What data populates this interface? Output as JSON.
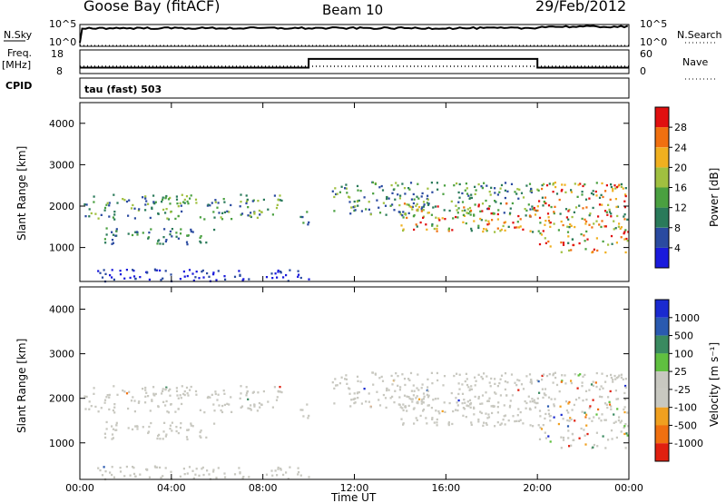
{
  "header": {
    "station": "Goose Bay (fitACF)",
    "beam": "Beam 10",
    "date": "29/Feb/2012"
  },
  "top_panels": {
    "nsky_label": "N.Sky",
    "nsky_ticks": [
      "10^5",
      "10^0"
    ],
    "nsearch_label": "N.Search",
    "nsearch_ticks": [
      "10^5",
      "10^0"
    ],
    "freq_label": "Freq.",
    "freq_unit": "[MHz]",
    "freq_ticks": [
      "18",
      "8"
    ],
    "nave_label": "Nave",
    "nave_ticks": [
      "60",
      "0"
    ],
    "cpid_label": "CPID",
    "cpid_value": "tau (fast) 503"
  },
  "colorbars": {
    "power": {
      "label": "Power [dB]",
      "ticks": [
        "28",
        "24",
        "20",
        "16",
        "12",
        "8",
        "4"
      ],
      "colors": [
        "#1a1adc",
        "#2a4aa0",
        "#2a7a5a",
        "#4aa040",
        "#a0c040",
        "#f0b020",
        "#f07010",
        "#e01010"
      ]
    },
    "velocity": {
      "label": "Velocity [m s⁻¹]",
      "ticks": [
        "1000",
        "500",
        "100",
        "25",
        "-25",
        "-100",
        "-500",
        "-1000"
      ],
      "colors": [
        "#1a2ad0",
        "#2a5ab0",
        "#3a8a60",
        "#60c040",
        "#c8c8c0",
        "#c8c8c0",
        "#f0a020",
        "#f07010",
        "#e02010"
      ]
    }
  },
  "chart_data": [
    {
      "type": "heatmap",
      "title": "Power",
      "ylabel": "Slant Range [km]",
      "yticks": [
        "4000",
        "3000",
        "2000",
        "1000"
      ],
      "ylim": [
        180,
        4500
      ],
      "xlim": [
        0,
        24
      ],
      "features": [
        {
          "t0": 0.1,
          "t1": 8.8,
          "r": [
            1700,
            2300
          ],
          "level": "strong"
        },
        {
          "t0": 1.0,
          "t1": 6.0,
          "r": [
            1100,
            1500
          ],
          "level": "medium"
        },
        {
          "t0": 9.5,
          "t1": 10.0,
          "r": [
            1500,
            1900
          ],
          "level": "medium"
        },
        {
          "t0": 11.0,
          "t1": 20.0,
          "r": [
            1800,
            2600
          ],
          "level": "strong"
        },
        {
          "t0": 14.0,
          "t1": 20.0,
          "r": [
            1400,
            2100
          ],
          "level": "high"
        },
        {
          "t0": 20.0,
          "t1": 24.0,
          "r": [
            900,
            2600
          ],
          "level": "high"
        },
        {
          "t0": 0.5,
          "t1": 10.0,
          "r": [
            200,
            500
          ],
          "level": "weak"
        }
      ]
    },
    {
      "type": "heatmap",
      "title": "Velocity",
      "ylabel": "Slant Range [km]",
      "xlabel": "Time UT",
      "yticks": [
        "4000",
        "3000",
        "2000",
        "1000"
      ],
      "xticks": [
        "00:00",
        "04:00",
        "08:00",
        "12:00",
        "16:00",
        "20:00",
        "00:00"
      ],
      "ylim": [
        180,
        4500
      ],
      "xlim": [
        0,
        24
      ]
    },
    {
      "type": "line",
      "title": "N.Sky",
      "x": [
        0,
        0.1,
        4,
        8,
        12,
        16,
        20,
        20.2,
        24
      ],
      "y": [
        1,
        5,
        5,
        5,
        5,
        5,
        5,
        5.5,
        5.3
      ]
    },
    {
      "type": "line",
      "title": "Freq.",
      "x": [
        0,
        10,
        10,
        20,
        20,
        24
      ],
      "y": [
        10.5,
        10.5,
        14.2,
        14.2,
        10.5,
        10.5
      ]
    }
  ]
}
